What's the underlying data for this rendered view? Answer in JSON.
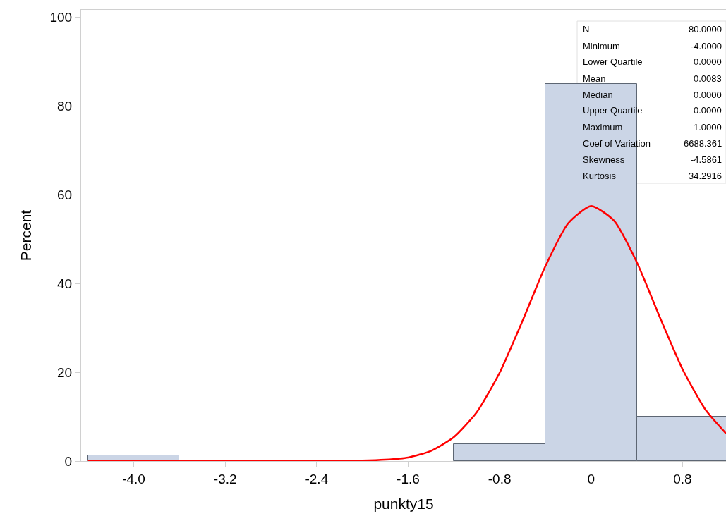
{
  "chart_data": {
    "type": "histogram",
    "xlabel": "punkty15",
    "ylabel": "Percent",
    "bins": [
      -4.4,
      -3.6,
      -2.8,
      -2.0,
      -1.2,
      -0.4,
      0.4,
      1.2
    ],
    "values": [
      1.25,
      0,
      0,
      0,
      3.75,
      85,
      10
    ],
    "color": "#cbd5e6",
    "series": [
      {
        "type": "line",
        "color": "#ff0000",
        "x": [
          -4.4,
          -3.2,
          -2.4,
          -2.0,
          -1.8,
          -1.6,
          -1.4,
          -1.2,
          -1.0,
          -0.8,
          -0.6,
          -0.4,
          -0.2,
          0,
          0.2,
          0.4,
          0.6,
          0.8,
          1.0,
          1.18
        ],
        "values": [
          0,
          0,
          0,
          0.1,
          0.3,
          0.8,
          2.3,
          5.4,
          11,
          19.9,
          31.6,
          43.9,
          53.6,
          57.5,
          54.2,
          44.8,
          32.5,
          20.7,
          11.6,
          6.2
        ]
      }
    ],
    "xlim": [
      -4.46,
      1.18
    ],
    "xticks": [
      {
        "value": -4,
        "label": "-4.0"
      },
      -3.2,
      -2.4,
      -1.6,
      -0.8,
      0,
      0.8
    ],
    "ylim": [
      0,
      101.7
    ],
    "yticks": [
      0,
      20,
      40,
      60,
      80,
      100
    ],
    "grid": false,
    "marker": "none",
    "line_style": "solid",
    "annotations": [
      "N",
      "80.0000",
      "Minimum",
      "-4.0000",
      "Lower Quartile",
      "0.0000",
      "Mean",
      "0.0083",
      "Median",
      "0.0000",
      "Upper Quartile",
      "0.0000",
      "Maximum",
      "1.0000",
      "Coef of Variation",
      "6688.361",
      "Skewness",
      "-4.5861",
      "Kurtosis",
      "34.2916"
    ]
  }
}
